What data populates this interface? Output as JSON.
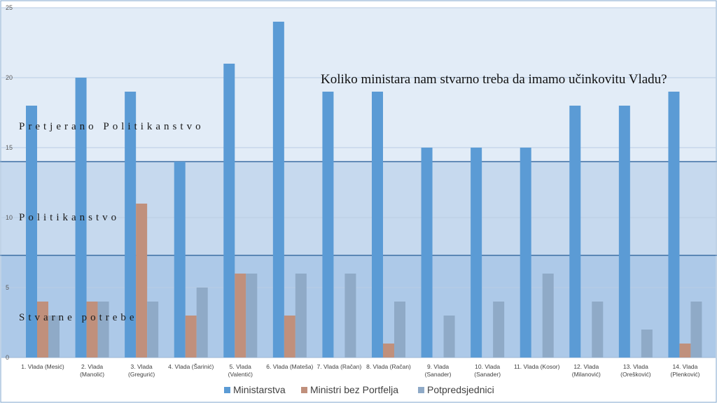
{
  "colors": {
    "ministarstva": "#5b9bd5",
    "ministri_bez_portfelja": "#c0907c",
    "potpredsjednici": "#8faac7",
    "band_top": "#e2ecf7",
    "band_mid": "#c6d9ee",
    "band_low": "#adc9e8",
    "band_border": "#3d6fa3"
  },
  "annotations": {
    "title": "Koliko ministara nam stvarno treba da imamo učinkovitu Vladu?",
    "band_top": "Pretjerano Politikanstvo",
    "band_mid": "Politikanstvo",
    "band_low": "Stvarne potrebe"
  },
  "chart_data": {
    "type": "bar",
    "title": "Koliko ministara nam stvarno treba da imamo učinkovitu Vladu?",
    "xlabel": "",
    "ylabel": "",
    "ylim": [
      0,
      25
    ],
    "yticks": [
      0,
      5,
      10,
      15,
      20,
      25
    ],
    "grid": true,
    "legend_position": "bottom",
    "categories": [
      [
        "1. Vlada (Mesić)"
      ],
      [
        "2. Vlada",
        "(Manolić)"
      ],
      [
        "3. Vlada",
        "(Gregurić)"
      ],
      [
        "4. Vlada (Šarinić)"
      ],
      [
        "5. Vlada",
        "(Valentić)"
      ],
      [
        "6. Vlada (Mateša)"
      ],
      [
        "7. Vlada (Račan)"
      ],
      [
        "8. Vlada (Račan)"
      ],
      [
        "9. Vlada",
        "(Sanader)"
      ],
      [
        "10. Vlada",
        "(Sanader)"
      ],
      [
        "11. Vlada (Kosor)"
      ],
      [
        "12. Vlada",
        "(Milanović)"
      ],
      [
        "13. Vlada",
        "(Orešković)"
      ],
      [
        "14. Vlada",
        "(Plenković)"
      ]
    ],
    "series": [
      {
        "name": "Ministarstva",
        "values": [
          18,
          20,
          19,
          14,
          21,
          24,
          19,
          19,
          15,
          15,
          15,
          18,
          18,
          19
        ]
      },
      {
        "name": "Ministri bez Portfelja",
        "values": [
          4,
          4,
          11,
          3,
          6,
          3,
          0,
          1,
          0,
          0,
          0,
          0,
          0,
          1
        ]
      },
      {
        "name": "Potpredsjednici",
        "values": [
          3,
          4,
          4,
          5,
          6,
          6,
          6,
          4,
          3,
          4,
          6,
          4,
          2,
          4
        ]
      }
    ],
    "bands": [
      {
        "label": "Stvarne potrebe",
        "from": 0,
        "to": 7.3
      },
      {
        "label": "Politikanstvo",
        "from": 7.3,
        "to": 14
      },
      {
        "label": "Pretjerano Politikanstvo",
        "from": 14,
        "to": 25
      }
    ]
  }
}
